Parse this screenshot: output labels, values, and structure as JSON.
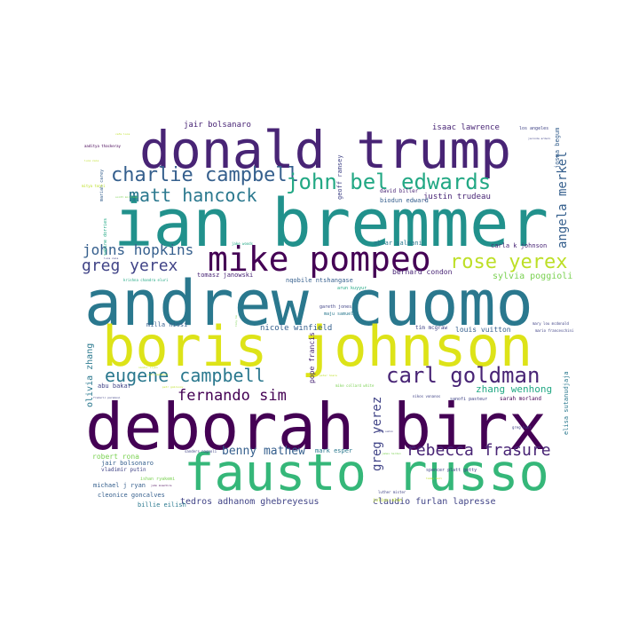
{
  "palette": {
    "dark_purple": "#440154",
    "purple": "#482475",
    "indigo": "#414487",
    "blue": "#355f8d",
    "teal_blue": "#2a788e",
    "teal": "#21918c",
    "green_teal": "#22a884",
    "green": "#44bf70",
    "light_green": "#7ad151",
    "yellow_green": "#bddf26",
    "yellow": "#fde725"
  },
  "words": [
    {
      "text": "donald trump",
      "color": "#482475"
    },
    {
      "text": "ian bremmer",
      "color": "#21918c"
    },
    {
      "text": "andrew cuomo",
      "color": "#2a788e"
    },
    {
      "text": "boris johnson",
      "color": "#dde318"
    },
    {
      "text": "deborah birx",
      "color": "#440154"
    },
    {
      "text": "fausto russo",
      "color": "#35b779"
    },
    {
      "text": "mike pompeo",
      "color": "#440154"
    },
    {
      "text": "charlie campbell",
      "color": "#355f8d"
    },
    {
      "text": "john bel edwards",
      "color": "#22a884"
    },
    {
      "text": "matt hancock",
      "color": "#2a788e"
    },
    {
      "text": "johns hopkins",
      "color": "#355f8d"
    },
    {
      "text": "greg yerex",
      "color": "#414487"
    },
    {
      "text": "rose yerex",
      "color": "#bddf26"
    },
    {
      "text": "eugene campbell",
      "color": "#2a788e"
    },
    {
      "text": "carl goldman",
      "color": "#482475"
    },
    {
      "text": "fernando sim",
      "color": "#440154"
    },
    {
      "text": "rebecca frasure",
      "color": "#482475"
    },
    {
      "text": "benny mathew",
      "color": "#355f8d"
    },
    {
      "text": "angela merkel",
      "color": "#355f8d"
    },
    {
      "text": "jair bolsanaro",
      "color": "#482475"
    },
    {
      "text": "isaac lawrence",
      "color": "#482475"
    },
    {
      "text": "sylvia poggioli",
      "color": "#7ad151"
    },
    {
      "text": "greg yerez",
      "color": "#414487"
    },
    {
      "text": "zhang wenhong",
      "color": "#22a884"
    },
    {
      "text": "olivia zhang",
      "color": "#2a788e"
    },
    {
      "text": "nicole winfield",
      "color": "#355f8d"
    },
    {
      "text": "louis vuitton",
      "color": "#355f8d"
    },
    {
      "text": "tedros adhanom ghebreyesus",
      "color": "#414487"
    },
    {
      "text": "claudio furlan lapresse",
      "color": "#414487"
    },
    {
      "text": "robert rona",
      "color": "#7ad151"
    },
    {
      "text": "justin trudeau",
      "color": "#482475"
    },
    {
      "text": "bernard condon",
      "color": "#482475"
    },
    {
      "text": "milla nissi",
      "color": "#355f8d"
    },
    {
      "text": "pope francis",
      "color": "#482475"
    },
    {
      "text": "abu bakar",
      "color": "#414487"
    },
    {
      "text": "mark esper",
      "color": "#2a788e"
    },
    {
      "text": "jair bolsonaro",
      "color": "#355f8d"
    },
    {
      "text": "vladimir putin",
      "color": "#414487"
    },
    {
      "text": "michael j ryan",
      "color": "#355f8d"
    },
    {
      "text": "cleonice goncalves",
      "color": "#355f8d"
    },
    {
      "text": "billie eilish",
      "color": "#2a788e"
    },
    {
      "text": "tomasz janowski",
      "color": "#482475"
    },
    {
      "text": "nqobile ntshangase",
      "color": "#355f8d"
    },
    {
      "text": "abrar salmani",
      "color": "#2a788e"
    },
    {
      "text": "carla k johnson",
      "color": "#482475"
    },
    {
      "text": "josna begum",
      "color": "#355f8d"
    },
    {
      "text": "elisa sutanudjaja",
      "color": "#2a788e"
    },
    {
      "text": "david biller",
      "color": "#482475"
    },
    {
      "text": "biodun edward",
      "color": "#355f8d"
    },
    {
      "text": "geoff ramsey",
      "color": "#414487"
    },
    {
      "text": "tim mcgraw",
      "color": "#414487"
    },
    {
      "text": "sarah morland",
      "color": "#440154"
    },
    {
      "text": "arun kuyyur",
      "color": "#22a884"
    },
    {
      "text": "gareth jones",
      "color": "#414487"
    },
    {
      "text": "maju samuel",
      "color": "#2a788e"
    },
    {
      "text": "spencer platt getty",
      "color": "#414487"
    },
    {
      "text": "julius alan",
      "color": "#bddf26"
    },
    {
      "text": "luther mister",
      "color": "#414487"
    },
    {
      "text": "los angeles",
      "color": "#414487"
    },
    {
      "text": "aaditya thackeray",
      "color": "#440154"
    },
    {
      "text": "jake woods",
      "color": "#22a884"
    },
    {
      "text": "mariah carey",
      "color": "#355f8d"
    },
    {
      "text": "sabine dorries",
      "color": "#22a884"
    },
    {
      "text": "ishan ryakemi",
      "color": "#7ad151"
    },
    {
      "text": "krishna chandra eluri",
      "color": "#22a884"
    },
    {
      "text": "mary lou mcdonald",
      "color": "#414487"
    },
    {
      "text": "mario franceschini",
      "color": "#414487"
    },
    {
      "text": "sanofi pasteur",
      "color": "#414487"
    },
    {
      "text": "greg hunt",
      "color": "#414487"
    },
    {
      "text": "nikos vonanos",
      "color": "#414487"
    },
    {
      "text": "mike collard white",
      "color": "#7ad151"
    },
    {
      "text": "sanders nagnoli",
      "color": "#414487"
    },
    {
      "text": "frederic paramosi",
      "color": "#414487"
    },
    {
      "text": "mitya tonti",
      "color": "#bddf26"
    },
    {
      "text": "scott morrison",
      "color": "#7ad151"
    },
    {
      "text": "john mcentire",
      "color": "#440154"
    },
    {
      "text": "luca zaia",
      "color": "#414487"
    },
    {
      "text": "ugur sahin",
      "color": "#414487"
    },
    {
      "text": "peter hoare",
      "color": "#bddf26"
    },
    {
      "text": "nandor lijen",
      "color": "#bddf26"
    },
    {
      "text": "yuri kadobnov",
      "color": "#bddf26"
    },
    {
      "text": "james harden",
      "color": "#7ad151"
    },
    {
      "text": "jacinda ardern",
      "color": "#414487"
    },
    {
      "text": "petr gobrunov",
      "color": "#bddf26"
    },
    {
      "text": "cafe loca",
      "color": "#bddf26"
    },
    {
      "text": "luca zaia",
      "color": "#bddf26"
    },
    {
      "text": "tommy hall",
      "color": "#bddf26"
    },
    {
      "text": "tony ha",
      "color": "#7ad151"
    }
  ]
}
